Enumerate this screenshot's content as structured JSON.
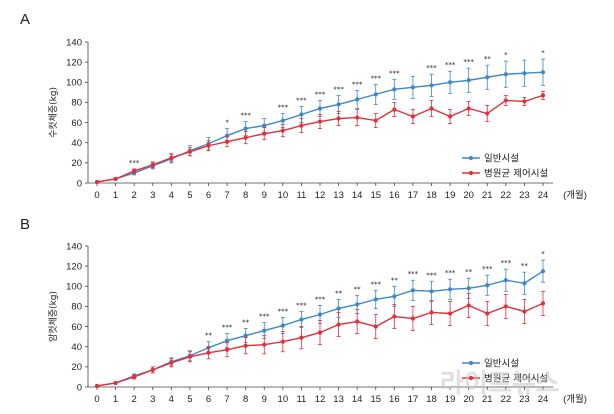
{
  "watermark": "라이프뉴스",
  "colors": {
    "normal": "#3d87c6",
    "spf": "#e0303a",
    "axis": "#444444",
    "text": "#222222"
  },
  "chart_data": [
    {
      "type": "line",
      "panel": "A",
      "ylabel": "수컷체중(kg)",
      "xlabel": "(개월)",
      "ylim": [
        0,
        140
      ],
      "yticks": [
        0,
        20,
        40,
        60,
        80,
        100,
        120,
        140
      ],
      "x": [
        0,
        1,
        2,
        3,
        4,
        5,
        6,
        7,
        8,
        9,
        10,
        11,
        12,
        13,
        14,
        15,
        16,
        17,
        18,
        19,
        20,
        21,
        22,
        23,
        24
      ],
      "legend_position": "right",
      "series": [
        {
          "name": "일반시설",
          "color": "#3d87c6",
          "values": [
            1,
            4,
            10,
            17,
            24,
            32,
            39,
            47,
            54,
            57,
            62,
            68,
            74,
            78,
            83,
            88,
            93,
            95,
            97,
            100,
            102,
            105,
            108,
            109,
            110
          ],
          "errors": [
            0,
            1,
            2,
            3,
            4,
            5,
            6,
            7,
            7,
            7,
            7,
            8,
            8,
            9,
            9,
            10,
            10,
            11,
            11,
            11,
            12,
            12,
            13,
            13,
            13
          ]
        },
        {
          "name": "병원균 제어시설",
          "color": "#e0303a",
          "values": [
            1,
            4,
            12,
            18,
            25,
            31,
            37,
            41,
            45,
            49,
            52,
            57,
            61,
            64,
            65,
            62,
            73,
            66,
            74,
            66,
            74,
            69,
            82,
            81,
            87
          ],
          "errors": [
            0,
            1,
            2,
            3,
            4,
            4,
            5,
            5,
            6,
            6,
            6,
            7,
            7,
            7,
            8,
            7,
            7,
            7,
            8,
            7,
            7,
            8,
            5,
            4,
            4
          ]
        }
      ],
      "significance": [
        "",
        "",
        "***",
        "",
        "",
        "",
        "",
        "*",
        "***",
        "",
        "***",
        "***",
        "***",
        "***",
        "***",
        "***",
        "***",
        "",
        "***",
        "***",
        "***",
        "**",
        "*",
        "",
        "*"
      ]
    },
    {
      "type": "line",
      "panel": "B",
      "ylabel": "암컷체중(kg)",
      "xlabel": "(개월)",
      "ylim": [
        0,
        140
      ],
      "yticks": [
        0,
        20,
        40,
        60,
        80,
        100,
        120,
        140
      ],
      "x": [
        0,
        1,
        2,
        3,
        4,
        5,
        6,
        7,
        8,
        9,
        10,
        11,
        12,
        13,
        14,
        15,
        16,
        17,
        18,
        19,
        20,
        21,
        22,
        23,
        24
      ],
      "legend_position": "right",
      "series": [
        {
          "name": "일반시설",
          "color": "#3d87c6",
          "values": [
            1,
            4,
            11,
            17,
            25,
            31,
            39,
            46,
            51,
            56,
            61,
            67,
            72,
            78,
            82,
            87,
            90,
            96,
            95,
            97,
            98,
            101,
            106,
            103,
            115
          ],
          "errors": [
            0,
            1,
            2,
            3,
            4,
            5,
            6,
            7,
            7,
            8,
            8,
            8,
            9,
            9,
            9,
            9,
            10,
            10,
            10,
            10,
            10,
            10,
            11,
            11,
            11
          ]
        },
        {
          "name": "병원균 제어시설",
          "color": "#e0303a",
          "values": [
            1,
            4,
            10,
            17,
            24,
            30,
            34,
            37,
            41,
            42,
            45,
            49,
            54,
            62,
            65,
            60,
            70,
            68,
            74,
            73,
            81,
            73,
            80,
            75,
            83
          ],
          "errors": [
            0,
            1,
            2,
            3,
            4,
            5,
            6,
            7,
            8,
            9,
            10,
            11,
            12,
            12,
            12,
            12,
            12,
            12,
            12,
            12,
            12,
            12,
            12,
            12,
            12
          ]
        }
      ],
      "significance": [
        "",
        "",
        "",
        "",
        "",
        "",
        "**",
        "***",
        "**",
        "***",
        "***",
        "***",
        "***",
        "**",
        "**",
        "***",
        "**",
        "***",
        "***",
        "***",
        "**",
        "***",
        "***",
        "**",
        "*"
      ]
    }
  ]
}
